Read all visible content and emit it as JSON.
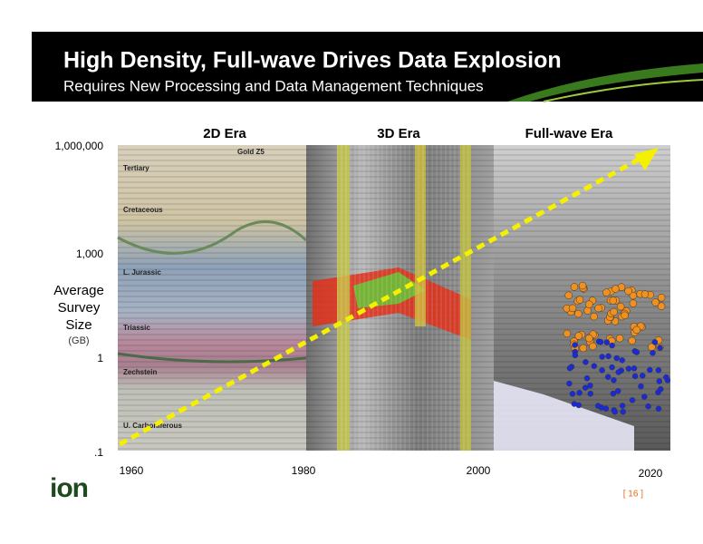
{
  "header": {
    "title": "High Density, Full-wave Drives Data Explosion",
    "subtitle": "Requires New Processing and Data Management Techniques"
  },
  "eras": [
    "2D Era",
    "3D Era",
    "Full-wave Era"
  ],
  "y_axis": {
    "labels": [
      "1,000,000",
      "1,000",
      "1",
      ".1"
    ],
    "title": [
      "Average",
      "Survey",
      "Size"
    ],
    "unit": "(GB)"
  },
  "x_axis": {
    "labels": [
      "1960",
      "1980",
      "2000",
      "2020"
    ]
  },
  "seismic_labels": [
    "Tertiary",
    "Cretaceous",
    "L. Jurassic",
    "Triassic",
    "Zechstein",
    "U. Carboniferous",
    "Gold Z5"
  ],
  "footer": {
    "logo": "ion",
    "page": "[ 16 ]"
  }
}
